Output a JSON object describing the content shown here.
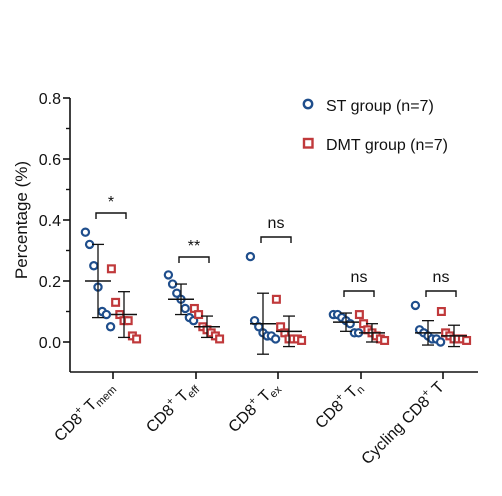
{
  "chart_data": {
    "type": "scatter",
    "ylabel": "Percentage (%)",
    "ylim": [
      0.0,
      0.8
    ],
    "yticks": [
      "0.0",
      "0.2",
      "0.4",
      "0.6",
      "0.8"
    ],
    "categories": [
      {
        "main": "CD8",
        "sup": "+",
        "letter": " T",
        "sub": "mem"
      },
      {
        "main": "CD8",
        "sup": "+",
        "letter": " T",
        "sub": "eff"
      },
      {
        "main": "CD8",
        "sup": "+",
        "letter": " T",
        "sub": "ex"
      },
      {
        "main": "CD8",
        "sup": "+",
        "letter": " T",
        "sub": "n"
      },
      {
        "main": "Cycling CD8",
        "sup": "+",
        "letter": " T",
        "sub": ""
      }
    ],
    "series": [
      {
        "name": "ST group (n=7)",
        "color": "#1f4e8c",
        "marker": "circle",
        "points": [
          [
            0.36,
            0.32,
            0.25,
            0.18,
            0.1,
            0.09,
            0.05
          ],
          [
            0.22,
            0.19,
            0.16,
            0.14,
            0.11,
            0.08,
            0.07
          ],
          [
            0.28,
            0.07,
            0.05,
            0.03,
            0.02,
            0.02,
            0.01
          ],
          [
            0.09,
            0.09,
            0.08,
            0.07,
            0.06,
            0.03,
            0.03
          ],
          [
            0.12,
            0.04,
            0.03,
            0.02,
            0.01,
            0.01,
            0.0
          ]
        ],
        "mean": [
          0.2,
          0.14,
          0.06,
          0.065,
          0.03
        ],
        "sd": [
          0.12,
          0.05,
          0.1,
          0.03,
          0.04
        ]
      },
      {
        "name": "DMT group (n=7)",
        "color": "#c0393b",
        "marker": "square",
        "points": [
          [
            0.24,
            0.13,
            0.09,
            0.07,
            0.07,
            0.02,
            0.01
          ],
          [
            0.11,
            0.09,
            0.05,
            0.04,
            0.03,
            0.02,
            0.01
          ],
          [
            0.14,
            0.05,
            0.03,
            0.01,
            0.01,
            0.01,
            0.005
          ],
          [
            0.09,
            0.06,
            0.04,
            0.03,
            0.02,
            0.01,
            0.005
          ],
          [
            0.1,
            0.03,
            0.02,
            0.01,
            0.01,
            0.01,
            0.005
          ]
        ],
        "mean": [
          0.09,
          0.05,
          0.035,
          0.03,
          0.02
        ],
        "sd": [
          0.075,
          0.035,
          0.05,
          0.03,
          0.035
        ]
      }
    ],
    "significance": [
      "*",
      "**",
      "ns",
      "ns",
      "ns"
    ],
    "legend_position": "top-right",
    "grid": false
  }
}
